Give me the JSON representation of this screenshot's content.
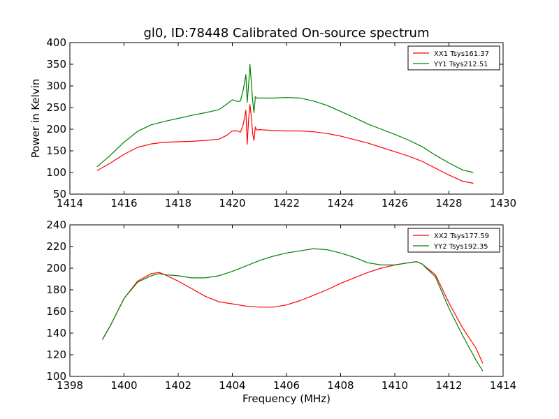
{
  "chart_data": [
    {
      "type": "line",
      "title": "gl0, ID:78448 Calibrated On-source spectrum",
      "xlabel": "",
      "ylabel": "Power in Kelvin",
      "xlim": [
        1414,
        1430
      ],
      "ylim": [
        50,
        400
      ],
      "xticks": [
        "1414",
        "1416",
        "1418",
        "1420",
        "1422",
        "1424",
        "1426",
        "1428",
        "1430"
      ],
      "yticks": [
        "50",
        "100",
        "150",
        "200",
        "250",
        "300",
        "350",
        "400"
      ],
      "legend_position": "top-right",
      "series": [
        {
          "name": "XX1 Tsys161.37",
          "color": "#ff0000",
          "x": [
            1415.0,
            1415.5,
            1416.0,
            1416.5,
            1417.0,
            1417.5,
            1418.0,
            1418.5,
            1419.0,
            1419.5,
            1419.8,
            1420.0,
            1420.2,
            1420.3,
            1420.4,
            1420.5,
            1420.55,
            1420.6,
            1420.65,
            1420.7,
            1420.75,
            1420.8,
            1420.85,
            1420.9,
            1421.0,
            1421.5,
            1422.0,
            1422.5,
            1423.0,
            1423.5,
            1424.0,
            1424.5,
            1425.0,
            1425.5,
            1426.0,
            1426.5,
            1427.0,
            1427.5,
            1428.0,
            1428.5,
            1428.9
          ],
          "y": [
            104,
            122,
            142,
            158,
            166,
            170,
            171,
            172,
            174,
            177,
            186,
            196,
            196,
            193,
            210,
            244,
            165,
            220,
            257,
            230,
            190,
            174,
            205,
            198,
            199,
            197,
            196,
            196,
            194,
            190,
            184,
            176,
            168,
            158,
            148,
            138,
            126,
            110,
            94,
            80,
            75
          ]
        },
        {
          "name": "YY1 Tsys212.51",
          "color": "#008000",
          "x": [
            1415.0,
            1415.5,
            1416.0,
            1416.5,
            1417.0,
            1417.5,
            1418.0,
            1418.5,
            1419.0,
            1419.5,
            1419.8,
            1420.0,
            1420.2,
            1420.3,
            1420.4,
            1420.5,
            1420.55,
            1420.6,
            1420.65,
            1420.7,
            1420.75,
            1420.8,
            1420.85,
            1420.9,
            1421.0,
            1421.5,
            1422.0,
            1422.5,
            1423.0,
            1423.5,
            1424.0,
            1424.5,
            1425.0,
            1425.5,
            1426.0,
            1426.5,
            1427.0,
            1427.5,
            1428.0,
            1428.5,
            1428.9
          ],
          "y": [
            113,
            140,
            170,
            195,
            210,
            218,
            225,
            232,
            238,
            245,
            258,
            268,
            264,
            265,
            290,
            326,
            262,
            300,
            350,
            310,
            265,
            238,
            275,
            272,
            272,
            272,
            273,
            272,
            265,
            255,
            241,
            227,
            212,
            200,
            188,
            175,
            160,
            140,
            122,
            106,
            100
          ]
        }
      ]
    },
    {
      "type": "line",
      "title": "",
      "xlabel": "Frequency (MHz)",
      "ylabel": "",
      "xlim": [
        1398,
        1414
      ],
      "ylim": [
        100,
        240
      ],
      "xticks": [
        "1398",
        "1400",
        "1402",
        "1404",
        "1406",
        "1408",
        "1410",
        "1412",
        "1414"
      ],
      "yticks": [
        "100",
        "120",
        "140",
        "160",
        "180",
        "200",
        "220",
        "240"
      ],
      "legend_position": "top-right",
      "series": [
        {
          "name": "XX2 Tsys177.59",
          "color": "#ff0000",
          "x": [
            1399.2,
            1399.5,
            1400.0,
            1400.5,
            1401.0,
            1401.3,
            1401.5,
            1402.0,
            1402.5,
            1403.0,
            1403.5,
            1404.0,
            1404.5,
            1405.0,
            1405.5,
            1406.0,
            1406.5,
            1407.0,
            1407.5,
            1408.0,
            1408.5,
            1409.0,
            1409.5,
            1410.0,
            1410.5,
            1410.8,
            1411.0,
            1411.5,
            1412.0,
            1412.5,
            1413.0,
            1413.25
          ],
          "y": [
            134,
            147,
            172,
            188,
            195,
            196,
            194,
            188,
            181,
            174,
            169,
            167,
            165,
            164,
            164,
            166,
            170,
            175,
            180,
            186,
            191,
            196,
            200,
            203,
            205,
            206,
            204,
            194,
            168,
            145,
            126,
            112
          ]
        },
        {
          "name": "YY2 Tsys192.35",
          "color": "#008000",
          "x": [
            1399.2,
            1399.5,
            1400.0,
            1400.5,
            1401.0,
            1401.3,
            1401.5,
            1402.0,
            1402.5,
            1403.0,
            1403.5,
            1404.0,
            1404.5,
            1405.0,
            1405.5,
            1406.0,
            1406.5,
            1407.0,
            1407.5,
            1408.0,
            1408.5,
            1409.0,
            1409.5,
            1410.0,
            1410.5,
            1410.8,
            1411.0,
            1411.5,
            1412.0,
            1412.5,
            1413.0,
            1413.25
          ],
          "y": [
            134,
            147,
            172,
            187,
            193,
            195,
            194,
            193,
            191,
            191,
            193,
            197,
            202,
            207,
            211,
            214,
            216,
            218,
            217,
            214,
            210,
            205,
            203,
            203,
            205,
            206,
            204,
            192,
            163,
            138,
            115,
            105
          ]
        }
      ]
    }
  ]
}
